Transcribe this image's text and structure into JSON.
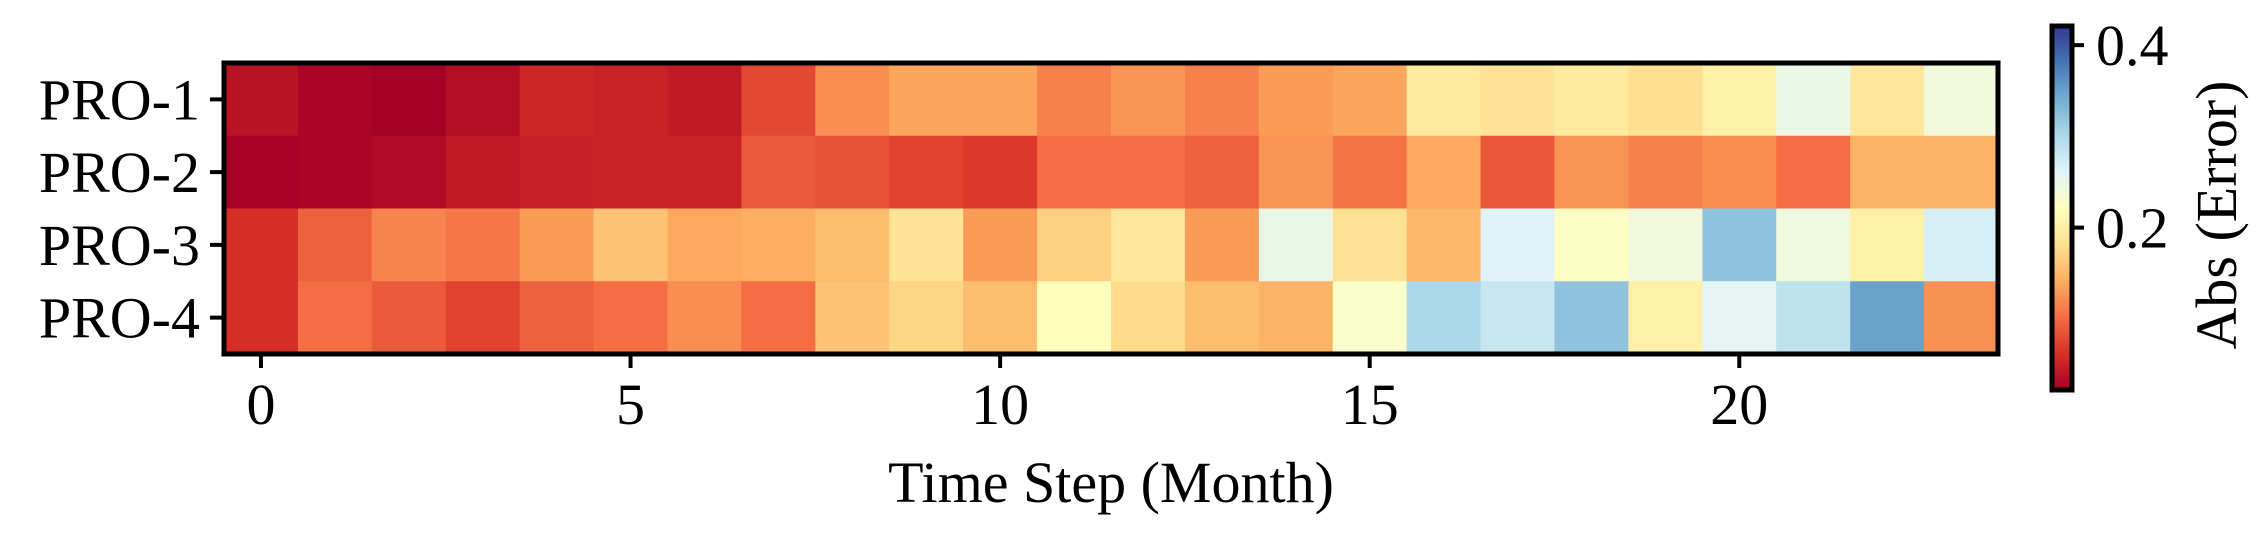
{
  "chart_data": {
    "type": "heatmap",
    "title": "",
    "xlabel": "Time Step (Month)",
    "ylabel": "",
    "rows": [
      "PRO-1",
      "PRO-2",
      "PRO-3",
      "PRO-4"
    ],
    "x": [
      0,
      1,
      2,
      3,
      4,
      5,
      6,
      7,
      8,
      9,
      10,
      11,
      12,
      13,
      14,
      15,
      16,
      17,
      18,
      19,
      20,
      21,
      22,
      23
    ],
    "xticks": [
      0,
      5,
      10,
      15,
      20
    ],
    "xtick_labels": [
      "0",
      "5",
      "10",
      "15",
      "20"
    ],
    "values": [
      [
        0.038,
        0.026,
        0.022,
        0.034,
        0.054,
        0.05,
        0.044,
        0.078,
        0.122,
        0.136,
        0.136,
        0.114,
        0.126,
        0.114,
        0.13,
        0.136,
        0.194,
        0.186,
        0.194,
        0.182,
        0.202,
        0.249,
        0.19,
        0.241
      ],
      [
        0.024,
        0.026,
        0.03,
        0.044,
        0.048,
        0.05,
        0.05,
        0.09,
        0.084,
        0.074,
        0.068,
        0.102,
        0.102,
        0.094,
        0.126,
        0.106,
        0.138,
        0.088,
        0.126,
        0.114,
        0.122,
        0.102,
        0.146,
        0.146
      ],
      [
        0.06,
        0.094,
        0.116,
        0.108,
        0.13,
        0.158,
        0.138,
        0.142,
        0.154,
        0.186,
        0.13,
        0.17,
        0.19,
        0.13,
        0.249,
        0.184,
        0.15,
        0.261,
        0.225,
        0.241,
        0.321,
        0.243,
        0.202,
        0.269
      ],
      [
        0.06,
        0.102,
        0.09,
        0.074,
        0.094,
        0.102,
        0.122,
        0.102,
        0.158,
        0.172,
        0.154,
        0.22,
        0.178,
        0.154,
        0.146,
        0.229,
        0.301,
        0.281,
        0.321,
        0.202,
        0.257,
        0.287,
        0.349,
        0.124
      ]
    ],
    "colormap": "RdYlBu",
    "colormap_stops": [
      "#a50026",
      "#d73027",
      "#f46d43",
      "#fdae61",
      "#fee090",
      "#ffffbf",
      "#e0f3f8",
      "#abd9e9",
      "#74add1",
      "#4575b4",
      "#313695"
    ],
    "clim": [
      0.022,
      0.421
    ],
    "colorbar": {
      "label": "Abs (Error)",
      "ticks": [
        0.2,
        0.4
      ],
      "tick_labels": [
        "0.2",
        "0.4"
      ],
      "placement": "right"
    },
    "grid": false
  }
}
